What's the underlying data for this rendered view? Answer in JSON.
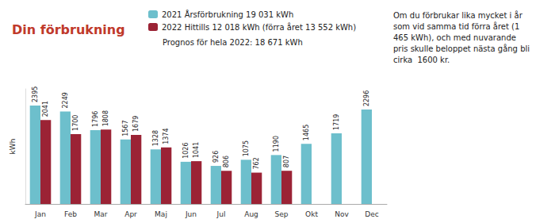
{
  "chart_data": {
    "type": "bar",
    "title": "Din förbrukning",
    "categories": [
      "Jan",
      "Feb",
      "Mar",
      "Apr",
      "Maj",
      "Jun",
      "Jul",
      "Aug",
      "Sep",
      "Okt",
      "Nov",
      "Dec"
    ],
    "series": [
      {
        "name": "2021 Årsförbrukning 19 031 kWh",
        "color": "#6dbfcc",
        "values": [
          2395,
          2249,
          1796,
          1567,
          1328,
          1026,
          926,
          1075,
          1190,
          1465,
          1719,
          2296
        ]
      },
      {
        "name": "2022 Hittills 12 018 kWh (förra året 13 552 kWh)",
        "color": "#9b2335",
        "values": [
          2041,
          1700,
          1808,
          1679,
          1374,
          1041,
          806,
          762,
          807,
          null,
          null,
          null
        ]
      }
    ],
    "ylabel": "kWh",
    "ylim": [
      0,
      2800
    ],
    "grid": false,
    "legend": "top",
    "data_labels": true,
    "tick_labels": "x",
    "annotations": [
      "Prognos för hela 2022: 18 671 kWh",
      "Om du förbrukar lika mycket i år\nsom vid samma tid förra året (1\n465 kWh), och med nuvarande\npris skulle beloppet nästa gång bli\ncirka  1600 kr."
    ]
  }
}
